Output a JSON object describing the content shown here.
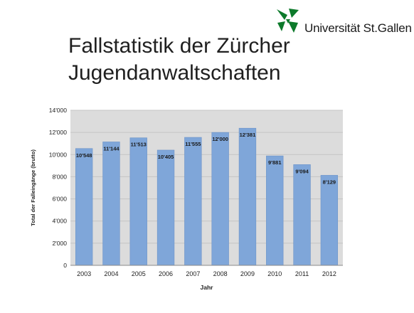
{
  "logo": {
    "text": "Universität St.Gallen",
    "icon": "hsg-leaf-logo-icon",
    "color": "#0d7a2b"
  },
  "slide": {
    "title_line1": "Fallstatistik der Zürcher",
    "title_line2": "Jugendanwaltschaften"
  },
  "chart_data": {
    "type": "bar",
    "categories": [
      "2003",
      "2004",
      "2005",
      "2006",
      "2007",
      "2008",
      "2009",
      "2010",
      "2011",
      "2012"
    ],
    "values": [
      10548,
      11144,
      11513,
      10405,
      11555,
      12000,
      12381,
      9881,
      9094,
      8129
    ],
    "data_labels": [
      "10'548",
      "11'144",
      "11'513",
      "10'405",
      "11'555",
      "12'000",
      "12'381",
      "9'881",
      "9'094",
      "8'129"
    ],
    "title": "",
    "xlabel": "Jahr",
    "ylabel": "Total der Falleingänge (brutto)",
    "ylim": [
      0,
      14000
    ],
    "yticks": [
      0,
      2000,
      4000,
      6000,
      8000,
      10000,
      12000,
      14000
    ],
    "ytick_labels": [
      "0",
      "2'000",
      "4'000",
      "6'000",
      "8'000",
      "10'000",
      "12'000",
      "14'000"
    ],
    "grid": true,
    "legend": "none",
    "colors": {
      "bar": "#7fa6d9",
      "bar_edge": "#6d94c8",
      "plot_background": "#dcdcdc",
      "grid": "#c4c4c4"
    }
  }
}
